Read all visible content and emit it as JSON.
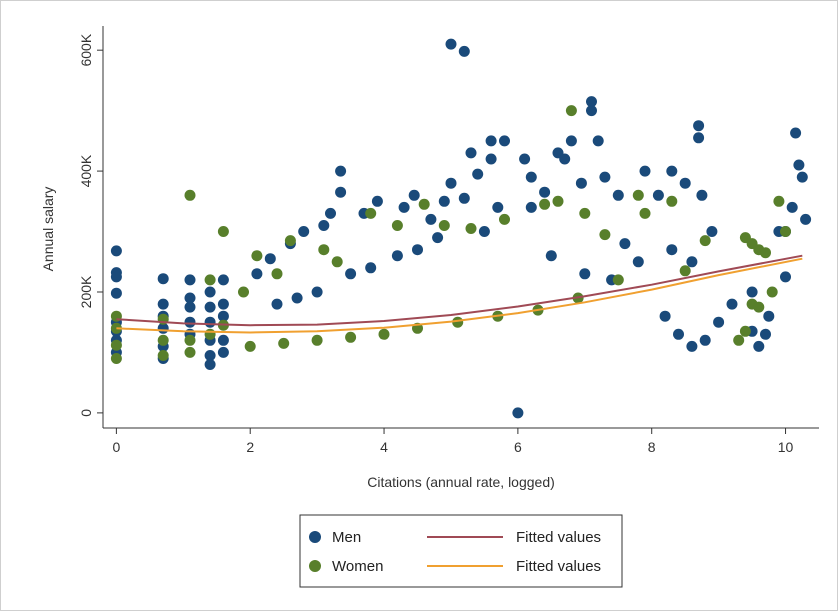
{
  "chart_data": {
    "type": "scatter",
    "xlabel": "Citations (annual rate, logged)",
    "ylabel": "Annual salary",
    "xlim": [
      -0.2,
      10.5
    ],
    "ylim": [
      -25000,
      640000
    ],
    "x_ticks": [
      0,
      2,
      4,
      6,
      8,
      10
    ],
    "x_tick_labels": [
      "0",
      "2",
      "4",
      "6",
      "8",
      "10"
    ],
    "y_ticks": [
      0,
      200000,
      400000,
      600000
    ],
    "y_tick_labels": [
      "0",
      "200K",
      "400K",
      "600K"
    ],
    "grid": false,
    "legend_position": "bottom",
    "colors": {
      "men": "#1a4a7a",
      "women": "#587f2b",
      "fit_men": "#a04a55",
      "fit_women": "#f0a030"
    },
    "series": [
      {
        "name": "Men",
        "kind": "scatter",
        "points": [
          [
            0,
            268000
          ],
          [
            0,
            232000
          ],
          [
            0,
            225000
          ],
          [
            0,
            198000
          ],
          [
            0,
            150000
          ],
          [
            0,
            135000
          ],
          [
            0,
            120000
          ],
          [
            0,
            100000
          ],
          [
            0.7,
            222000
          ],
          [
            0.7,
            180000
          ],
          [
            0.7,
            160000
          ],
          [
            0.7,
            140000
          ],
          [
            0.7,
            110000
          ],
          [
            0.7,
            90000
          ],
          [
            1.1,
            220000
          ],
          [
            1.1,
            190000
          ],
          [
            1.1,
            175000
          ],
          [
            1.1,
            150000
          ],
          [
            1.1,
            130000
          ],
          [
            1.4,
            200000
          ],
          [
            1.4,
            175000
          ],
          [
            1.4,
            150000
          ],
          [
            1.4,
            120000
          ],
          [
            1.4,
            95000
          ],
          [
            1.4,
            80000
          ],
          [
            1.6,
            220000
          ],
          [
            1.6,
            180000
          ],
          [
            1.6,
            160000
          ],
          [
            1.6,
            120000
          ],
          [
            1.6,
            100000
          ],
          [
            2.1,
            230000
          ],
          [
            2.3,
            255000
          ],
          [
            2.6,
            280000
          ],
          [
            2.8,
            300000
          ],
          [
            3.1,
            310000
          ],
          [
            3.2,
            330000
          ],
          [
            3.35,
            400000
          ],
          [
            3.35,
            365000
          ],
          [
            3.7,
            330000
          ],
          [
            3.9,
            350000
          ],
          [
            4.3,
            340000
          ],
          [
            4.45,
            360000
          ],
          [
            4.7,
            320000
          ],
          [
            4.9,
            350000
          ],
          [
            5.0,
            610000
          ],
          [
            5.2,
            598000
          ],
          [
            5.0,
            380000
          ],
          [
            5.2,
            355000
          ],
          [
            5.3,
            430000
          ],
          [
            5.4,
            395000
          ],
          [
            5.6,
            420000
          ],
          [
            5.6,
            450000
          ],
          [
            5.8,
            450000
          ],
          [
            5.7,
            340000
          ],
          [
            6.1,
            420000
          ],
          [
            6.2,
            390000
          ],
          [
            6.2,
            340000
          ],
          [
            6.4,
            365000
          ],
          [
            6.6,
            430000
          ],
          [
            6.7,
            420000
          ],
          [
            6.8,
            450000
          ],
          [
            6.95,
            380000
          ],
          [
            7.1,
            500000
          ],
          [
            7.1,
            515000
          ],
          [
            7.2,
            450000
          ],
          [
            7.3,
            390000
          ],
          [
            7.5,
            360000
          ],
          [
            7.9,
            400000
          ],
          [
            8.1,
            360000
          ],
          [
            8.3,
            400000
          ],
          [
            8.5,
            380000
          ],
          [
            8.7,
            475000
          ],
          [
            8.7,
            455000
          ],
          [
            8.75,
            360000
          ],
          [
            8.3,
            270000
          ],
          [
            8.6,
            250000
          ],
          [
            8.9,
            300000
          ],
          [
            8.2,
            160000
          ],
          [
            8.4,
            130000
          ],
          [
            8.6,
            110000
          ],
          [
            8.8,
            120000
          ],
          [
            9.0,
            150000
          ],
          [
            9.2,
            180000
          ],
          [
            9.5,
            200000
          ],
          [
            9.6,
            110000
          ],
          [
            9.5,
            135000
          ],
          [
            9.7,
            130000
          ],
          [
            9.75,
            160000
          ],
          [
            9.9,
            300000
          ],
          [
            10.0,
            300000
          ],
          [
            10.1,
            340000
          ],
          [
            10.15,
            463000
          ],
          [
            10.2,
            410000
          ],
          [
            10.25,
            390000
          ],
          [
            10.3,
            320000
          ],
          [
            10.0,
            225000
          ],
          [
            7.6,
            280000
          ],
          [
            7.8,
            250000
          ],
          [
            7.4,
            220000
          ],
          [
            7.0,
            230000
          ],
          [
            6.5,
            260000
          ],
          [
            6.0,
            0
          ],
          [
            5.5,
            300000
          ],
          [
            4.8,
            290000
          ],
          [
            4.5,
            270000
          ],
          [
            4.2,
            260000
          ],
          [
            3.8,
            240000
          ],
          [
            3.5,
            230000
          ],
          [
            3.0,
            200000
          ],
          [
            2.7,
            190000
          ],
          [
            2.4,
            180000
          ]
        ]
      },
      {
        "name": "Women",
        "kind": "scatter",
        "points": [
          [
            0,
            160000
          ],
          [
            0,
            140000
          ],
          [
            0,
            112000
          ],
          [
            0,
            90000
          ],
          [
            0.7,
            155000
          ],
          [
            0.7,
            120000
          ],
          [
            0.7,
            95000
          ],
          [
            1.1,
            360000
          ],
          [
            1.1,
            120000
          ],
          [
            1.1,
            100000
          ],
          [
            1.4,
            220000
          ],
          [
            1.4,
            130000
          ],
          [
            1.6,
            300000
          ],
          [
            1.6,
            145000
          ],
          [
            1.9,
            200000
          ],
          [
            2.1,
            260000
          ],
          [
            2.4,
            230000
          ],
          [
            2.6,
            285000
          ],
          [
            3.1,
            270000
          ],
          [
            3.3,
            250000
          ],
          [
            3.8,
            330000
          ],
          [
            4.2,
            310000
          ],
          [
            4.6,
            345000
          ],
          [
            4.9,
            310000
          ],
          [
            5.3,
            305000
          ],
          [
            5.8,
            320000
          ],
          [
            6.4,
            345000
          ],
          [
            6.6,
            350000
          ],
          [
            6.8,
            500000
          ],
          [
            7.0,
            330000
          ],
          [
            7.3,
            295000
          ],
          [
            7.8,
            360000
          ],
          [
            7.9,
            330000
          ],
          [
            8.3,
            350000
          ],
          [
            8.5,
            235000
          ],
          [
            8.8,
            285000
          ],
          [
            9.4,
            290000
          ],
          [
            9.5,
            280000
          ],
          [
            9.6,
            270000
          ],
          [
            9.7,
            265000
          ],
          [
            9.5,
            180000
          ],
          [
            9.6,
            175000
          ],
          [
            9.8,
            200000
          ],
          [
            9.9,
            350000
          ],
          [
            9.3,
            120000
          ],
          [
            9.4,
            135000
          ],
          [
            10.0,
            300000
          ],
          [
            7.5,
            220000
          ],
          [
            6.9,
            190000
          ],
          [
            6.3,
            170000
          ],
          [
            5.7,
            160000
          ],
          [
            5.1,
            150000
          ],
          [
            4.5,
            140000
          ],
          [
            4.0,
            130000
          ],
          [
            3.5,
            125000
          ],
          [
            3.0,
            120000
          ],
          [
            2.5,
            115000
          ],
          [
            2.0,
            110000
          ]
        ]
      },
      {
        "name": "Fitted values",
        "kind": "line",
        "points": [
          [
            0,
            155000
          ],
          [
            1,
            148000
          ],
          [
            2,
            145000
          ],
          [
            3,
            146000
          ],
          [
            4,
            152000
          ],
          [
            5,
            162000
          ],
          [
            6,
            176000
          ],
          [
            7,
            193000
          ],
          [
            8,
            212000
          ],
          [
            9,
            234000
          ],
          [
            10.25,
            260000
          ]
        ]
      },
      {
        "name": "Fitted values",
        "kind": "line",
        "points": [
          [
            0,
            140000
          ],
          [
            1,
            135000
          ],
          [
            2,
            133000
          ],
          [
            3,
            135000
          ],
          [
            4,
            141000
          ],
          [
            5,
            151000
          ],
          [
            6,
            165000
          ],
          [
            7,
            183000
          ],
          [
            8,
            204000
          ],
          [
            9,
            228000
          ],
          [
            10.25,
            255000
          ]
        ]
      }
    ],
    "legend": [
      {
        "label": "Men",
        "marker": "circle",
        "color": "#1a4a7a"
      },
      {
        "label": "Fitted values",
        "marker": "line",
        "color": "#a04a55"
      },
      {
        "label": "Women",
        "marker": "circle",
        "color": "#587f2b"
      },
      {
        "label": "Fitted values",
        "marker": "line",
        "color": "#f0a030"
      }
    ]
  }
}
